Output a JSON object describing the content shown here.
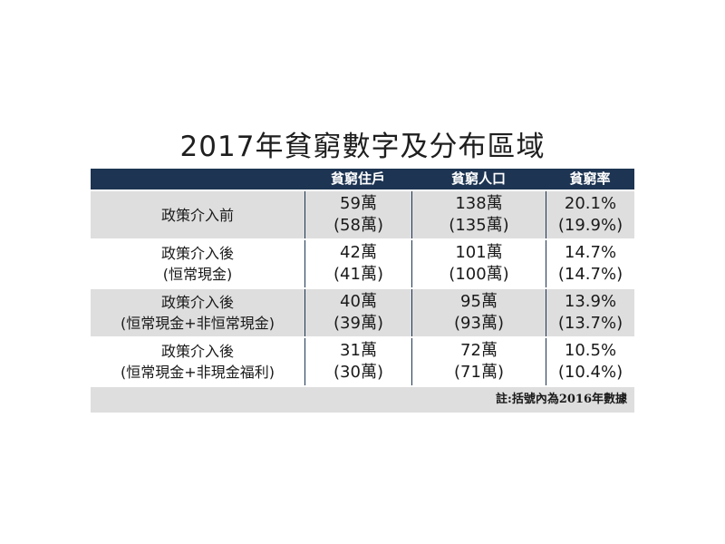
{
  "title": "2017年貧窮數字及分布區域",
  "table": {
    "headers": [
      "",
      "貧窮住戶",
      "貧窮人口",
      "貧窮率"
    ],
    "rows": [
      {
        "label": [
          "政策介入前"
        ],
        "households": "59萬",
        "households_prev": "(58萬)",
        "population": "138萬",
        "population_prev": "(135萬)",
        "rate": "20.1%",
        "rate_prev": "(19.9%)"
      },
      {
        "label": [
          "政策介入後",
          "(恒常現金)"
        ],
        "households": "42萬",
        "households_prev": "(41萬)",
        "population": "101萬",
        "population_prev": "(100萬)",
        "rate": "14.7%",
        "rate_prev": "(14.7%)"
      },
      {
        "label": [
          "政策介入後",
          "(恒常現金+非恒常現金)"
        ],
        "households": "40萬",
        "households_prev": "(39萬)",
        "population": "95萬",
        "population_prev": "(93萬)",
        "rate": "13.9%",
        "rate_prev": "(13.7%)"
      },
      {
        "label": [
          "政策介入後",
          "(恒常現金+非現金福利)"
        ],
        "households": "31萬",
        "households_prev": "(30萬)",
        "population": "72萬",
        "population_prev": "(71萬)",
        "rate": "10.5%",
        "rate_prev": "(10.4%)"
      }
    ],
    "note": "註:括號內為2016年數據"
  },
  "colors": {
    "header_bg": "#1d3553",
    "shade": "#dedede"
  }
}
